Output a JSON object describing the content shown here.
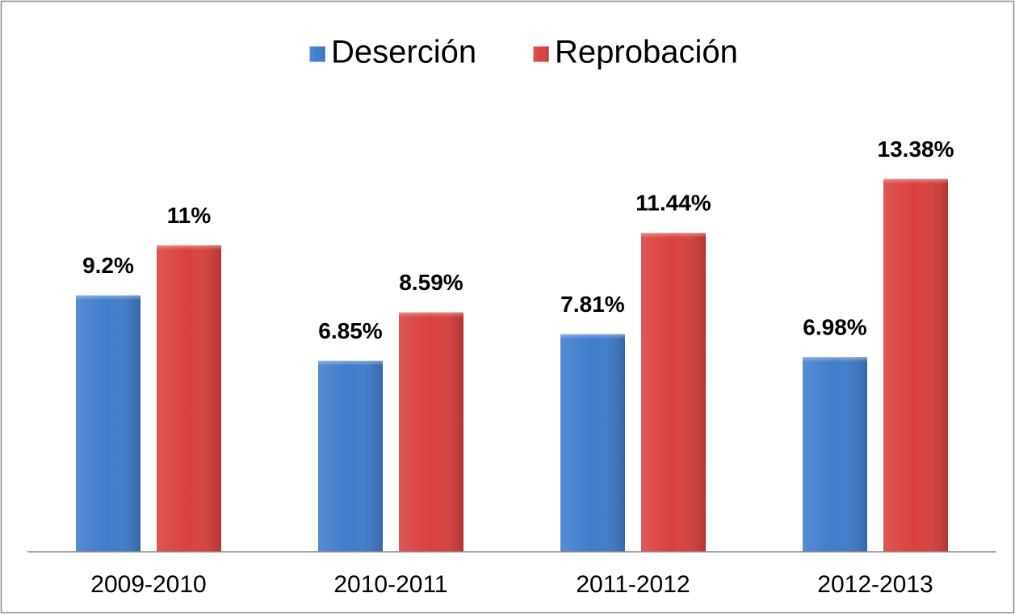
{
  "chart_data": {
    "type": "bar",
    "categories": [
      "2009-2010",
      "2010-2011",
      "2011-2012",
      "2012-2013"
    ],
    "series": [
      {
        "name": "Deserción",
        "color": "#3f7ccc",
        "values": [
          9.2,
          6.85,
          7.81,
          6.98
        ],
        "value_labels": [
          "9.2%",
          "6.85%",
          "7.81%",
          "6.98%"
        ]
      },
      {
        "name": "Reprobación",
        "color": "#d9403d",
        "values": [
          11,
          8.59,
          11.44,
          13.38
        ],
        "value_labels": [
          "11%",
          "8.59%",
          "11.44%",
          "13.38%"
        ]
      }
    ],
    "ylim": [
      0,
      16
    ],
    "legend": "top",
    "grid": false
  }
}
